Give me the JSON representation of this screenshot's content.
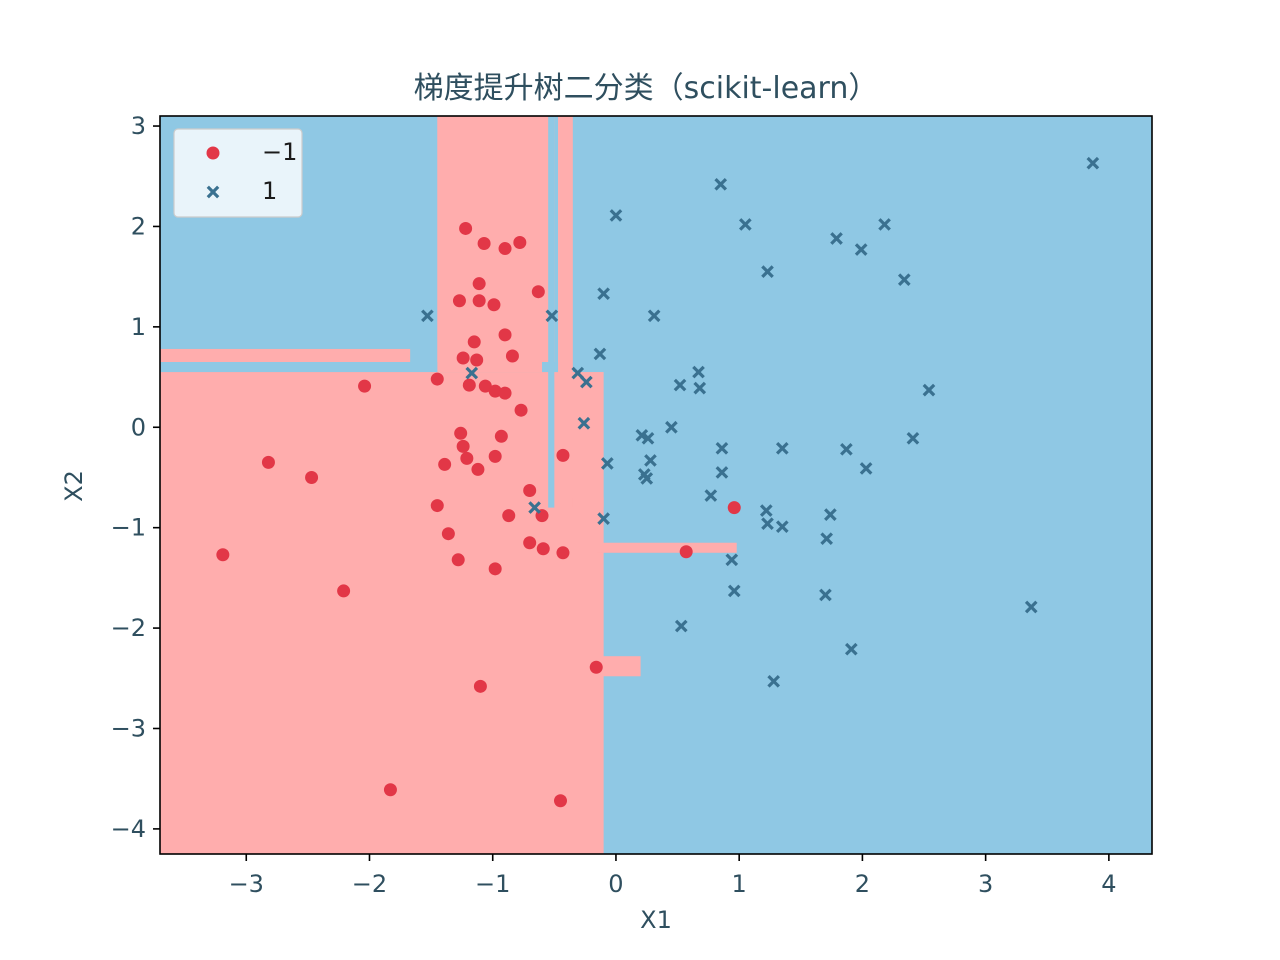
{
  "chart_data": {
    "type": "scatter",
    "title": "梯度提升树二分类（scikit-learn）",
    "xlabel": "X1",
    "ylabel": "X2",
    "xlim": [
      -3.7,
      4.35
    ],
    "ylim": [
      -4.25,
      3.1
    ],
    "x_ticks": [
      -3,
      -2,
      -1,
      0,
      1,
      2,
      3,
      4
    ],
    "x_tick_labels": [
      "−3",
      "−2",
      "−1",
      "0",
      "1",
      "2",
      "3",
      "4"
    ],
    "y_ticks": [
      -4,
      -3,
      -2,
      -1,
      0,
      1,
      2,
      3
    ],
    "y_tick_labels": [
      "−4",
      "−3",
      "−2",
      "−1",
      "0",
      "1",
      "2",
      "3"
    ],
    "grid": false,
    "legend_position": "top-left",
    "colors": {
      "region_negative": "#ffadad",
      "region_positive": "#8fc8e4",
      "negative_points": "#e23747",
      "positive_points": "#3a7190",
      "text": "#2f4f5f"
    },
    "decision_regions": {
      "background_class": "1",
      "negative_class_rectangles": [
        [
          -3.7,
          -0.1,
          -4.25,
          0.55
        ],
        [
          -1.45,
          -0.5,
          0.55,
          3.1
        ],
        [
          -0.47,
          -0.35,
          -1.2,
          3.1
        ],
        [
          -3.7,
          -1.67,
          0.55,
          0.78
        ],
        [
          -0.15,
          0.2,
          -2.48,
          -2.28
        ],
        [
          -0.15,
          0.98,
          -1.25,
          -1.15
        ],
        [
          -0.35,
          -0.1,
          -0.8,
          -0.7
        ]
      ],
      "positive_class_rectangles": [
        [
          -3.7,
          -1.45,
          0.55,
          0.65
        ],
        [
          -0.55,
          -0.5,
          -0.8,
          3.1
        ],
        [
          -0.6,
          -0.47,
          0.55,
          0.65
        ]
      ]
    },
    "series": [
      {
        "name": "−1",
        "marker": "circle",
        "points": [
          [
            -1.22,
            1.98
          ],
          [
            -1.07,
            1.83
          ],
          [
            -0.9,
            1.78
          ],
          [
            -0.78,
            1.84
          ],
          [
            -1.11,
            1.43
          ],
          [
            -0.63,
            1.35
          ],
          [
            -1.27,
            1.26
          ],
          [
            -1.11,
            1.26
          ],
          [
            -0.99,
            1.22
          ],
          [
            -0.9,
            0.92
          ],
          [
            -1.15,
            0.85
          ],
          [
            -0.84,
            0.71
          ],
          [
            -1.24,
            0.69
          ],
          [
            -1.13,
            0.67
          ],
          [
            -1.45,
            0.48
          ],
          [
            -1.19,
            0.42
          ],
          [
            -1.06,
            0.41
          ],
          [
            -0.98,
            0.36
          ],
          [
            -0.9,
            0.34
          ],
          [
            -2.04,
            0.41
          ],
          [
            -0.77,
            0.17
          ],
          [
            -1.26,
            -0.06
          ],
          [
            -0.93,
            -0.09
          ],
          [
            -1.24,
            -0.19
          ],
          [
            -0.98,
            -0.29
          ],
          [
            -1.21,
            -0.31
          ],
          [
            -0.43,
            -0.28
          ],
          [
            -1.39,
            -0.37
          ],
          [
            -1.12,
            -0.42
          ],
          [
            -2.82,
            -0.35
          ],
          [
            -2.47,
            -0.5
          ],
          [
            -0.7,
            -0.63
          ],
          [
            -1.45,
            -0.78
          ],
          [
            -0.87,
            -0.88
          ],
          [
            -0.6,
            -0.88
          ],
          [
            -1.36,
            -1.06
          ],
          [
            -0.7,
            -1.15
          ],
          [
            -0.59,
            -1.21
          ],
          [
            -0.43,
            -1.25
          ],
          [
            -1.28,
            -1.32
          ],
          [
            -0.98,
            -1.41
          ],
          [
            -3.19,
            -1.27
          ],
          [
            -2.21,
            -1.63
          ],
          [
            -0.16,
            -2.39
          ],
          [
            -1.1,
            -2.58
          ],
          [
            -1.83,
            -3.61
          ],
          [
            -0.45,
            -3.72
          ],
          [
            0.57,
            -1.24
          ],
          [
            0.96,
            -0.8
          ]
        ]
      },
      {
        "name": "1",
        "marker": "x",
        "points": [
          [
            3.87,
            2.63
          ],
          [
            0.85,
            2.42
          ],
          [
            0.0,
            2.11
          ],
          [
            1.05,
            2.02
          ],
          [
            2.18,
            2.02
          ],
          [
            1.79,
            1.88
          ],
          [
            1.99,
            1.77
          ],
          [
            1.23,
            1.55
          ],
          [
            2.34,
            1.47
          ],
          [
            -0.1,
            1.33
          ],
          [
            -1.53,
            1.11
          ],
          [
            -0.52,
            1.11
          ],
          [
            0.31,
            1.11
          ],
          [
            -0.13,
            0.73
          ],
          [
            0.67,
            0.55
          ],
          [
            -1.17,
            0.54
          ],
          [
            -0.31,
            0.54
          ],
          [
            -0.24,
            0.45
          ],
          [
            0.52,
            0.42
          ],
          [
            0.68,
            0.39
          ],
          [
            2.54,
            0.37
          ],
          [
            -0.26,
            0.04
          ],
          [
            0.45,
            0.0
          ],
          [
            0.21,
            -0.08
          ],
          [
            0.26,
            -0.11
          ],
          [
            2.41,
            -0.11
          ],
          [
            0.86,
            -0.21
          ],
          [
            1.35,
            -0.21
          ],
          [
            1.87,
            -0.22
          ],
          [
            -0.07,
            -0.36
          ],
          [
            0.28,
            -0.33
          ],
          [
            2.03,
            -0.41
          ],
          [
            0.23,
            -0.47
          ],
          [
            0.86,
            -0.45
          ],
          [
            0.25,
            -0.51
          ],
          [
            0.77,
            -0.68
          ],
          [
            -0.66,
            -0.8
          ],
          [
            1.22,
            -0.83
          ],
          [
            1.74,
            -0.87
          ],
          [
            -0.1,
            -0.91
          ],
          [
            1.23,
            -0.96
          ],
          [
            1.35,
            -0.99
          ],
          [
            1.71,
            -1.11
          ],
          [
            0.94,
            -1.32
          ],
          [
            0.96,
            -1.63
          ],
          [
            1.7,
            -1.67
          ],
          [
            3.37,
            -1.79
          ],
          [
            0.53,
            -1.98
          ],
          [
            1.91,
            -2.21
          ],
          [
            1.28,
            -2.53
          ]
        ]
      }
    ]
  }
}
